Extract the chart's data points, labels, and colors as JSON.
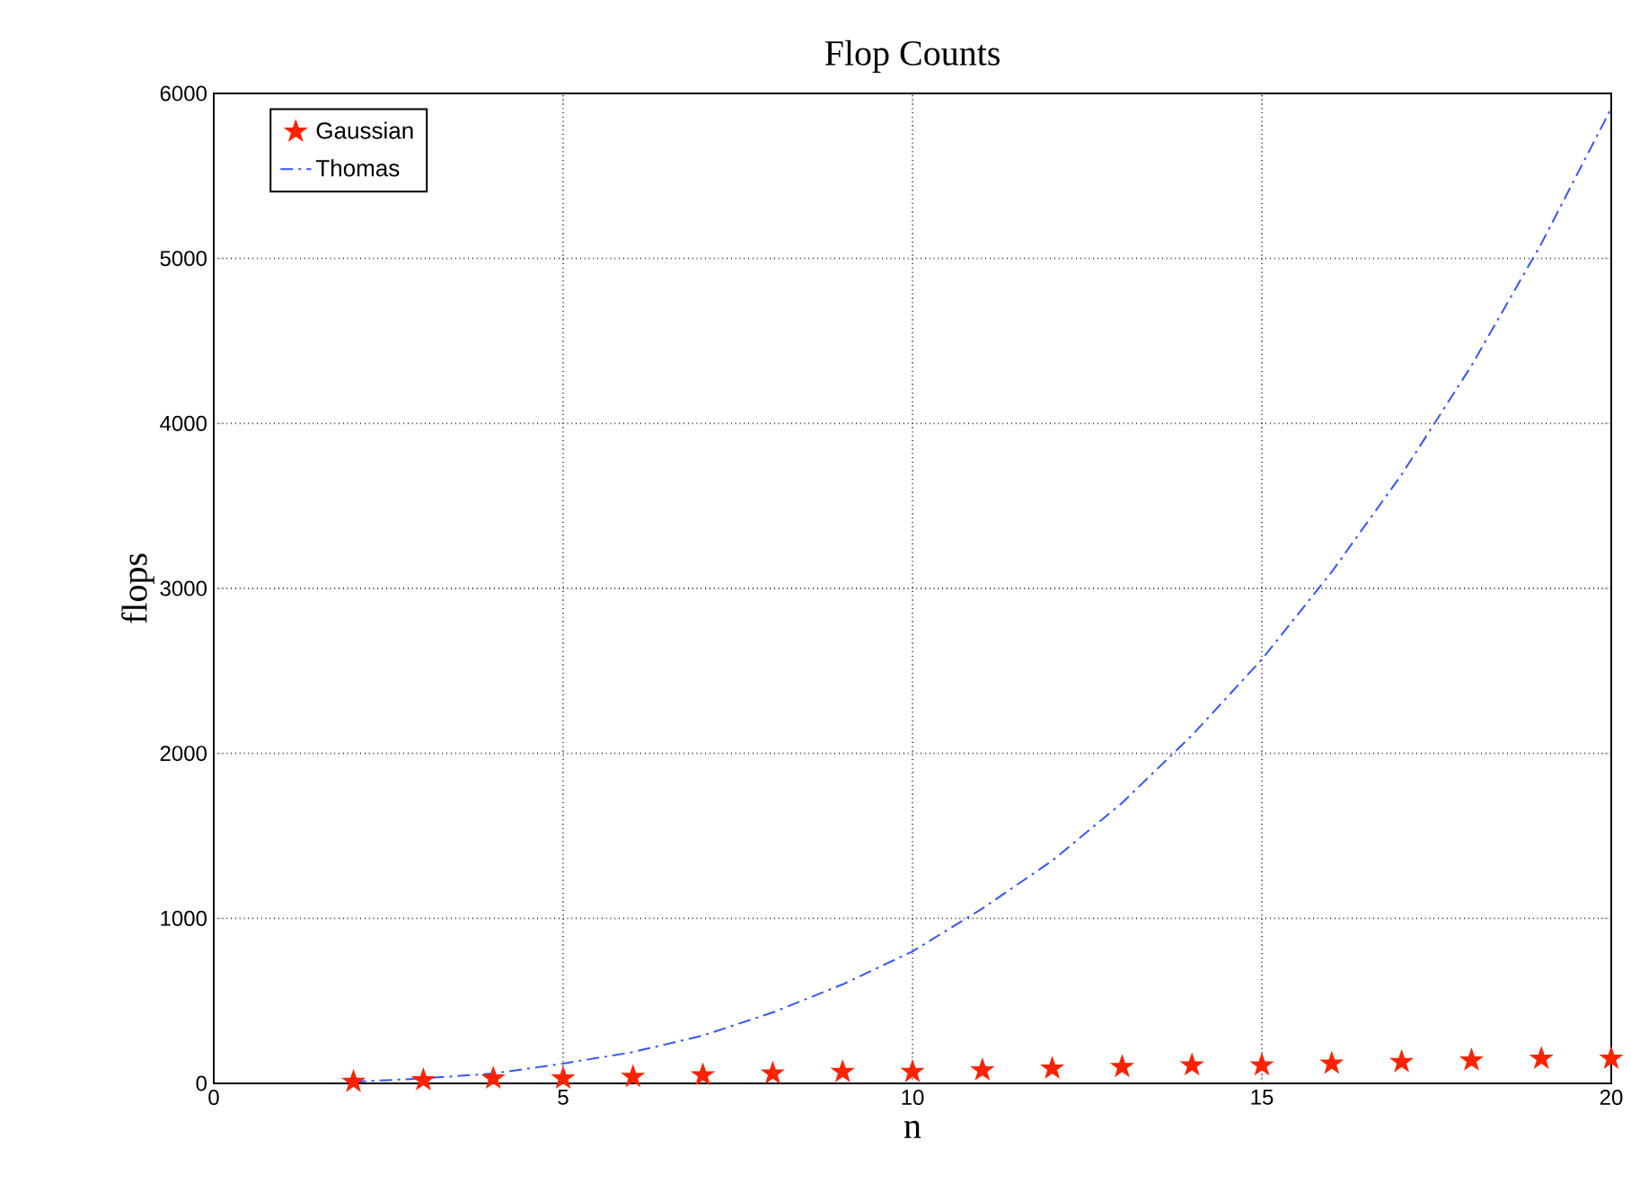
{
  "chart_data": {
    "type": "line",
    "title": "Flop Counts",
    "xlabel": "n",
    "ylabel": "flops",
    "x": [
      2,
      3,
      4,
      5,
      6,
      7,
      8,
      9,
      10,
      11,
      12,
      13,
      14,
      15,
      16,
      17,
      18,
      19,
      20
    ],
    "series": [
      {
        "name": "Gaussian",
        "type": "scatter",
        "color": "#ff2200",
        "marker": "star",
        "values": [
          10,
          20,
          30,
          30,
          40,
          50,
          60,
          70,
          70,
          80,
          90,
          100,
          110,
          110,
          120,
          130,
          140,
          150,
          150
        ]
      },
      {
        "name": "Thomas",
        "color": "#3355ff",
        "line_style": "dashdot",
        "values": [
          10,
          30,
          60,
          120,
          190,
          290,
          430,
          600,
          800,
          1060,
          1350,
          1700,
          2110,
          2570,
          3100,
          3690,
          4350,
          5090,
          5910
        ]
      }
    ],
    "xlim": [
      0,
      20
    ],
    "xticks": [
      0,
      5,
      10,
      15,
      20
    ],
    "ylim": [
      0,
      6000
    ],
    "yticks": [
      0,
      1000,
      2000,
      3000,
      4000,
      5000,
      6000
    ],
    "grid": true,
    "legend": "top left"
  }
}
